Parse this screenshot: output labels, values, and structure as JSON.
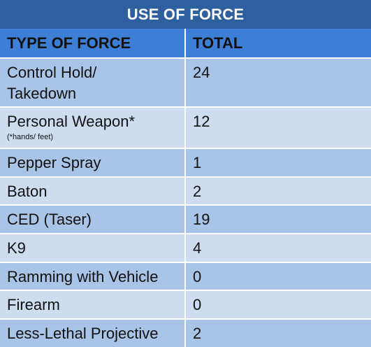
{
  "chart_data": {
    "type": "table",
    "title": "USE OF FORCE",
    "columns": [
      "TYPE OF FORCE",
      "TOTAL"
    ],
    "rows": [
      {
        "type_lines": [
          "Control Hold/",
          "Takedown"
        ],
        "footnote": "",
        "total": "24"
      },
      {
        "type_lines": [
          "Personal Weapon*"
        ],
        "footnote": "(*hands/ feet)",
        "total": "12"
      },
      {
        "type_lines": [
          "Pepper Spray"
        ],
        "footnote": "",
        "total": "1"
      },
      {
        "type_lines": [
          "Baton"
        ],
        "footnote": "",
        "total": "2"
      },
      {
        "type_lines": [
          "CED (Taser)"
        ],
        "footnote": "",
        "total": "19"
      },
      {
        "type_lines": [
          "K9"
        ],
        "footnote": "",
        "total": "4"
      },
      {
        "type_lines": [
          "Ramming with Vehicle"
        ],
        "footnote": "",
        "total": "0"
      },
      {
        "type_lines": [
          "Firearm"
        ],
        "footnote": "",
        "total": "0"
      },
      {
        "type_lines": [
          "Less-Lethal Projective"
        ],
        "footnote": "",
        "total": "2"
      }
    ]
  },
  "colors": {
    "title_bar": "#2e5f9e",
    "header_row": "#3d7fd6",
    "band_dark": "#a8c4e6",
    "band_light": "#cfdcef",
    "text": "#111111"
  }
}
